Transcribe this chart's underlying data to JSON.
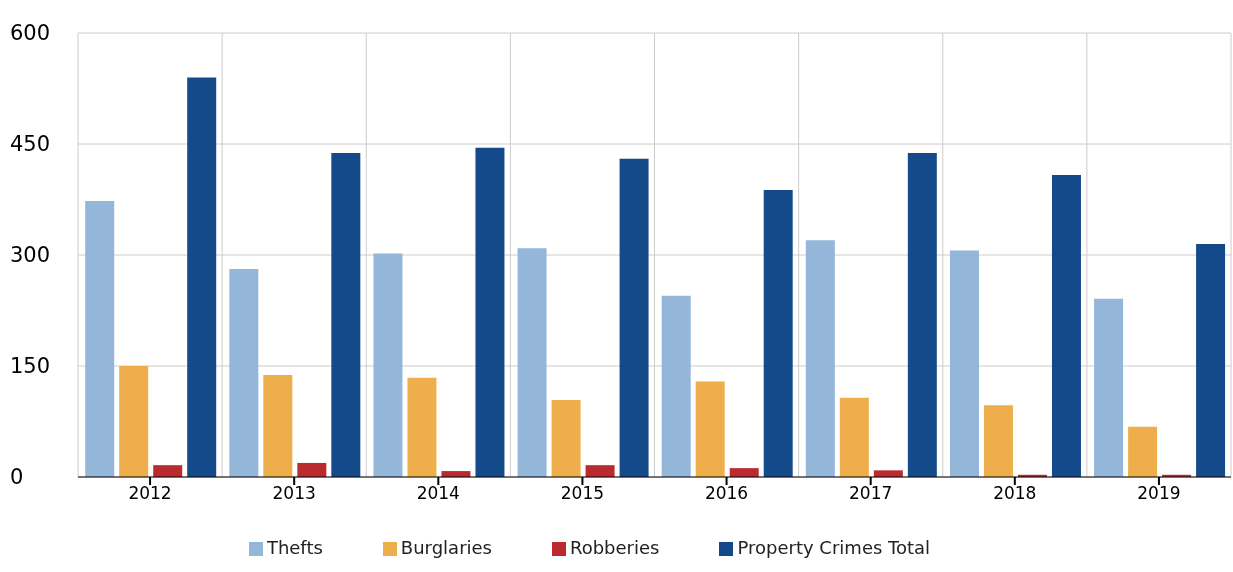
{
  "chart_data": {
    "type": "bar",
    "categories": [
      "2012",
      "2013",
      "2014",
      "2015",
      "2016",
      "2017",
      "2018",
      "2019"
    ],
    "series": [
      {
        "name": "Thefts",
        "color": "#94b6d9",
        "values": [
          373,
          281,
          302,
          309,
          245,
          320,
          306,
          241
        ]
      },
      {
        "name": "Burglaries",
        "color": "#eeae4c",
        "values": [
          150,
          138,
          134,
          104,
          129,
          107,
          97,
          68
        ]
      },
      {
        "name": "Robberies",
        "color": "#bb2a2e",
        "values": [
          16,
          19,
          8,
          16,
          12,
          9,
          3,
          3
        ]
      },
      {
        "name": "Property Crimes Total",
        "color": "#154a8a",
        "values": [
          540,
          438,
          445,
          430,
          388,
          438,
          408,
          315
        ]
      }
    ],
    "ylim": [
      0,
      600
    ],
    "yticks": [
      0,
      150,
      300,
      450,
      600
    ],
    "grid": true,
    "legend": "bottom"
  }
}
